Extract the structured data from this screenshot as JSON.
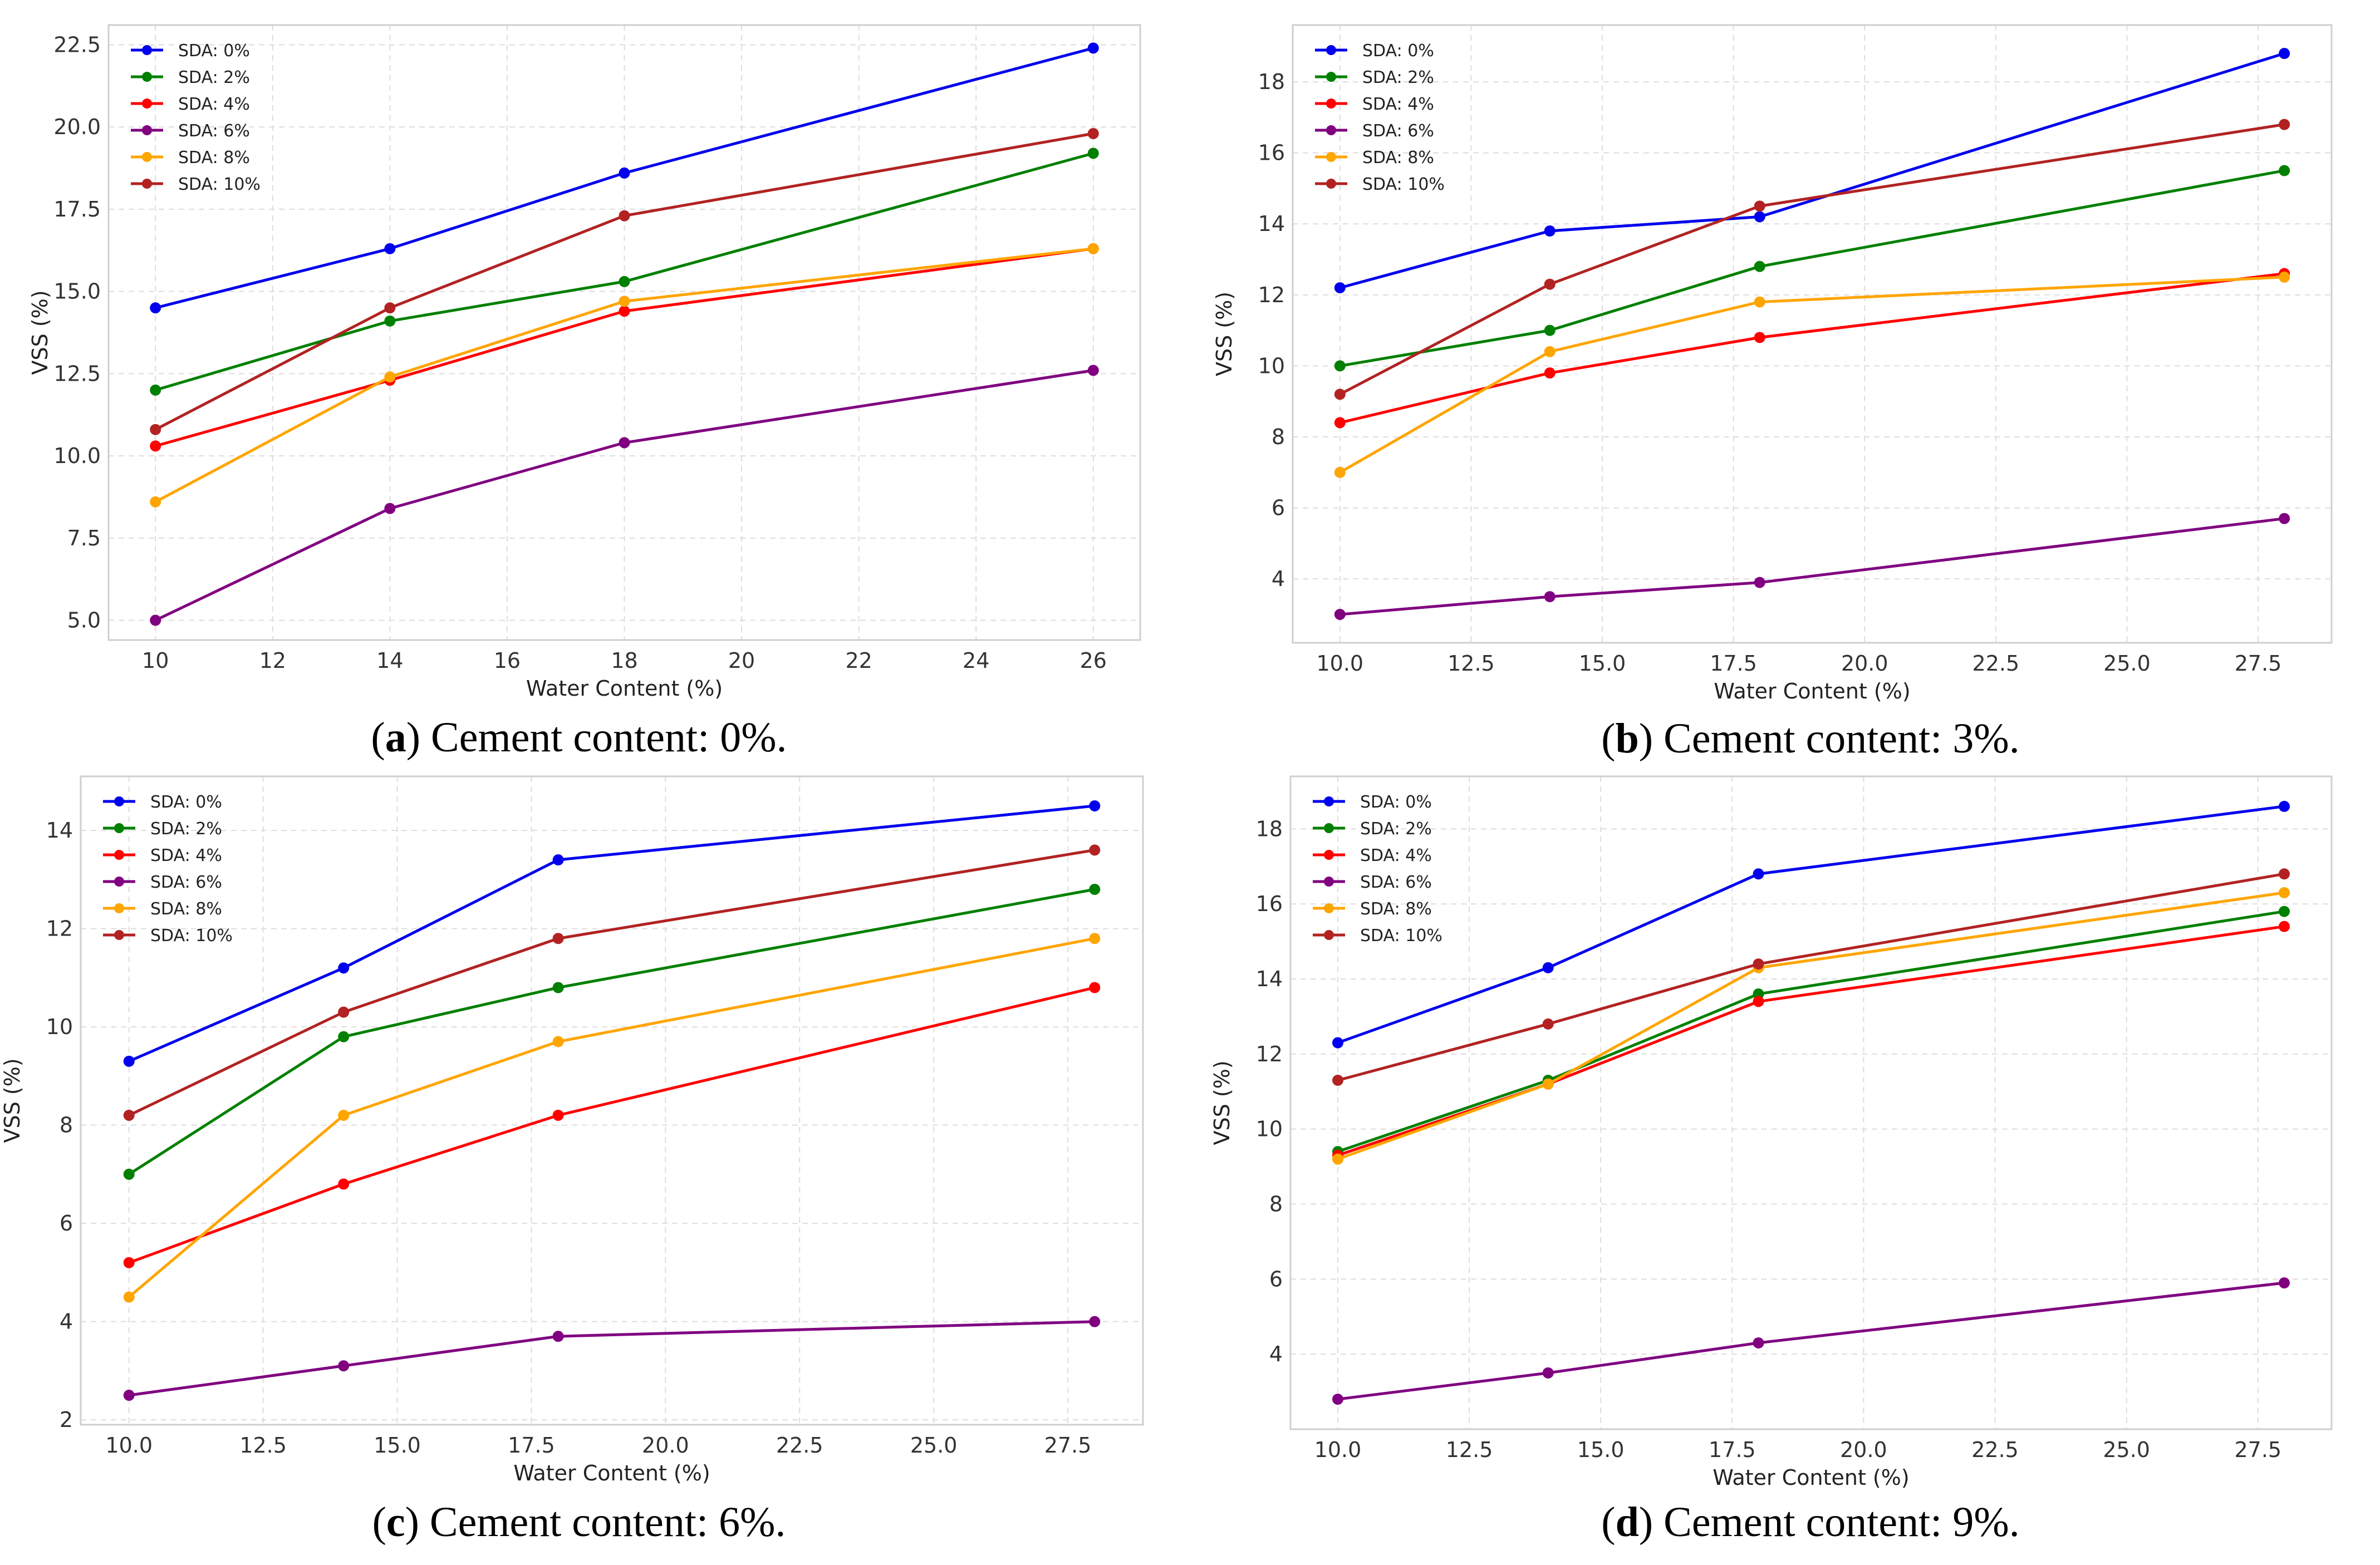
{
  "chart_data": [
    {
      "type": "line",
      "label": "a",
      "caption": "Cement content: 0%.",
      "xlabel": "Water Content (%)",
      "ylabel": "VSS (%)",
      "xlim": [
        9.2,
        26.8
      ],
      "ylim": [
        4.4,
        23.1
      ],
      "xticks": [
        "10",
        "12",
        "14",
        "16",
        "18",
        "20",
        "22",
        "24",
        "26"
      ],
      "yticks": [
        "5.0",
        "7.5",
        "10.0",
        "12.5",
        "15.0",
        "17.5",
        "20.0",
        "22.5"
      ],
      "x": [
        10,
        14,
        18,
        26
      ],
      "series": [
        {
          "name": "SDA: 0%",
          "values": [
            14.5,
            16.3,
            18.6,
            22.4
          ]
        },
        {
          "name": "SDA: 2%",
          "values": [
            12.0,
            14.1,
            15.3,
            19.2
          ]
        },
        {
          "name": "SDA: 4%",
          "values": [
            10.3,
            12.3,
            14.4,
            16.3
          ]
        },
        {
          "name": "SDA: 6%",
          "values": [
            5.0,
            8.4,
            10.4,
            12.6
          ]
        },
        {
          "name": "SDA: 8%",
          "values": [
            8.6,
            12.4,
            14.7,
            16.3
          ]
        },
        {
          "name": "SDA: 10%",
          "values": [
            10.8,
            14.5,
            17.3,
            19.8
          ]
        }
      ]
    },
    {
      "type": "line",
      "label": "b",
      "caption": "Cement content: 3%.",
      "xlabel": "Water Content (%)",
      "ylabel": "VSS (%)",
      "xlim": [
        9.1,
        28.9
      ],
      "ylim": [
        2.2,
        19.6
      ],
      "xticks": [
        "10.0",
        "12.5",
        "15.0",
        "17.5",
        "20.0",
        "22.5",
        "25.0",
        "27.5"
      ],
      "yticks": [
        "4",
        "6",
        "8",
        "10",
        "12",
        "14",
        "16",
        "18"
      ],
      "x": [
        10,
        14,
        18,
        28
      ],
      "series": [
        {
          "name": "SDA: 0%",
          "values": [
            12.2,
            13.8,
            14.2,
            18.8
          ]
        },
        {
          "name": "SDA: 2%",
          "values": [
            10.0,
            11.0,
            12.8,
            15.5
          ]
        },
        {
          "name": "SDA: 4%",
          "values": [
            8.4,
            9.8,
            10.8,
            12.6
          ]
        },
        {
          "name": "SDA: 6%",
          "values": [
            3.0,
            3.5,
            3.9,
            5.7
          ]
        },
        {
          "name": "SDA: 8%",
          "values": [
            7.0,
            10.4,
            11.8,
            12.5
          ]
        },
        {
          "name": "SDA: 10%",
          "values": [
            9.2,
            12.3,
            14.5,
            16.8
          ]
        }
      ]
    },
    {
      "type": "line",
      "label": "c",
      "caption": "Cement content: 6%.",
      "xlabel": "Water Content (%)",
      "ylabel": "VSS (%)",
      "xlim": [
        9.1,
        28.9
      ],
      "ylim": [
        1.9,
        15.1
      ],
      "xticks": [
        "10.0",
        "12.5",
        "15.0",
        "17.5",
        "20.0",
        "22.5",
        "25.0",
        "27.5"
      ],
      "yticks": [
        "2",
        "4",
        "6",
        "8",
        "10",
        "12",
        "14"
      ],
      "x": [
        10,
        14,
        18,
        28
      ],
      "series": [
        {
          "name": "SDA: 0%",
          "values": [
            9.3,
            11.2,
            13.4,
            14.5
          ]
        },
        {
          "name": "SDA: 2%",
          "values": [
            7.0,
            9.8,
            10.8,
            12.8
          ]
        },
        {
          "name": "SDA: 4%",
          "values": [
            5.2,
            6.8,
            8.2,
            10.8
          ]
        },
        {
          "name": "SDA: 6%",
          "values": [
            2.5,
            3.1,
            3.7,
            4.0
          ]
        },
        {
          "name": "SDA: 8%",
          "values": [
            4.5,
            8.2,
            9.7,
            11.8
          ]
        },
        {
          "name": "SDA: 10%",
          "values": [
            8.2,
            10.3,
            11.8,
            13.6
          ]
        }
      ]
    },
    {
      "type": "line",
      "label": "d",
      "caption": "Cement content: 9%.",
      "xlabel": "Water Content (%)",
      "ylabel": "VSS (%)",
      "xlim": [
        9.1,
        28.9
      ],
      "ylim": [
        2.0,
        19.4
      ],
      "xticks": [
        "10.0",
        "12.5",
        "15.0",
        "17.5",
        "20.0",
        "22.5",
        "25.0",
        "27.5"
      ],
      "yticks": [
        "4",
        "6",
        "8",
        "10",
        "12",
        "14",
        "16",
        "18"
      ],
      "x": [
        10,
        14,
        18,
        28
      ],
      "series": [
        {
          "name": "SDA: 0%",
          "values": [
            12.3,
            14.3,
            16.8,
            18.6
          ]
        },
        {
          "name": "SDA: 2%",
          "values": [
            9.4,
            11.3,
            13.6,
            15.8
          ]
        },
        {
          "name": "SDA: 4%",
          "values": [
            9.3,
            11.2,
            13.4,
            15.4
          ]
        },
        {
          "name": "SDA: 6%",
          "values": [
            2.8,
            3.5,
            4.3,
            5.9
          ]
        },
        {
          "name": "SDA: 8%",
          "values": [
            9.2,
            11.2,
            14.3,
            16.3
          ]
        },
        {
          "name": "SDA: 10%",
          "values": [
            11.3,
            12.8,
            14.4,
            16.8
          ]
        }
      ]
    }
  ],
  "series_colors": {
    "SDA: 0%": "#0000ee",
    "SDA: 2%": "#008000",
    "SDA: 4%": "#ff0000",
    "SDA: 6%": "#800080",
    "SDA: 8%": "#ffa500",
    "SDA: 10%": "#b22222"
  }
}
